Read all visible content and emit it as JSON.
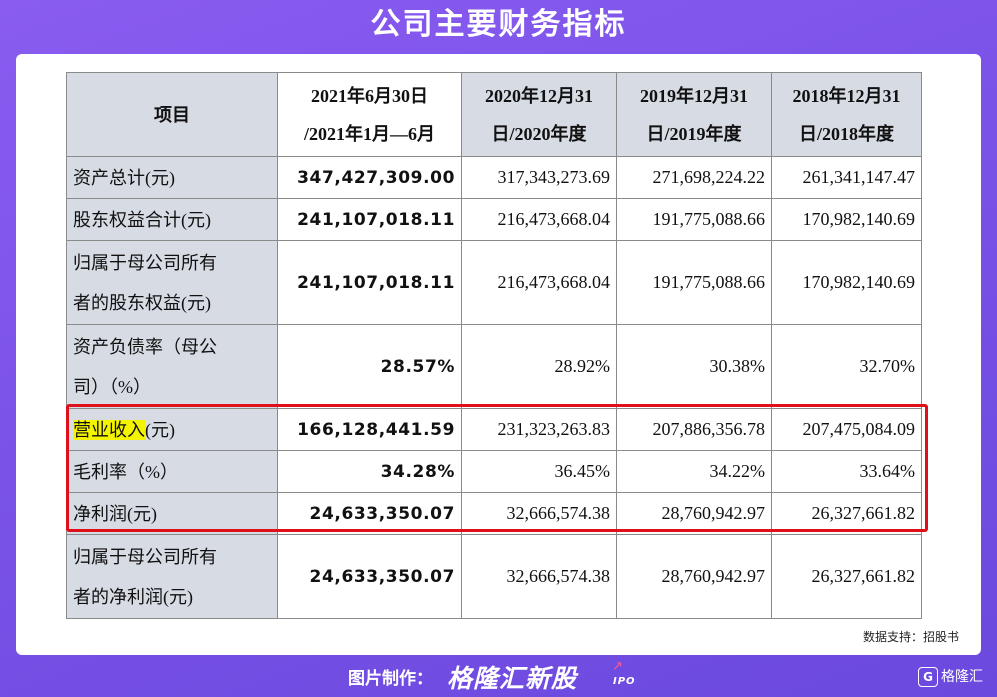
{
  "title": "公司主要财务指标",
  "watermark": {
    "brand": "格隆汇新股",
    "ipo": "IPO"
  },
  "table": {
    "header": {
      "item": "项目",
      "cols": [
        [
          "2021年6月30日",
          "/2021年1月—6月"
        ],
        [
          "2020年12月31",
          "日/2020年度"
        ],
        [
          "2019年12月31",
          "日/2019年度"
        ],
        [
          "2018年12月31",
          "日/2018年度"
        ]
      ]
    },
    "rows": [
      {
        "label_lines": [
          "资产总计(元)"
        ],
        "values": [
          "347,427,309.00",
          "317,343,273.69",
          "271,698,224.22",
          "261,341,147.47"
        ]
      },
      {
        "label_lines": [
          "股东权益合计(元)"
        ],
        "values": [
          "241,107,018.11",
          "216,473,668.04",
          "191,775,088.66",
          "170,982,140.69"
        ]
      },
      {
        "label_lines": [
          "归属于母公司所有",
          "者的股东权益(元)"
        ],
        "values": [
          "241,107,018.11",
          "216,473,668.04",
          "191,775,088.66",
          "170,982,140.69"
        ]
      },
      {
        "label_lines": [
          "资产负债率（母公",
          "司）（%）"
        ],
        "values": [
          "28.57%",
          "28.92%",
          "30.38%",
          "32.70%"
        ]
      },
      {
        "label_hl": "营业收入",
        "label_rest": "(元)",
        "values": [
          "166,128,441.59",
          "231,323,263.83",
          "207,886,356.78",
          "207,475,084.09"
        ]
      },
      {
        "label_lines": [
          "毛利率（%）"
        ],
        "values": [
          "34.28%",
          "36.45%",
          "34.22%",
          "33.64%"
        ]
      },
      {
        "label_lines": [
          "净利润(元)"
        ],
        "values": [
          "24,633,350.07",
          "32,666,574.38",
          "28,760,942.97",
          "26,327,661.82"
        ]
      },
      {
        "label_lines": [
          "归属于母公司所有",
          "者的净利润(元)"
        ],
        "values": [
          "24,633,350.07",
          "32,666,574.38",
          "28,760,942.97",
          "26,327,661.82"
        ]
      }
    ]
  },
  "source": "数据支持：招股书",
  "footer": {
    "credit": "图片制作：",
    "brand": "格隆汇新股",
    "brand_ipo": "IPO",
    "corner_logo": "G",
    "corner_text": "格隆汇"
  },
  "colors": {
    "background": "#7a52e8",
    "label_fill": "#d6dbe4",
    "highlight": "#f4f400",
    "red_box": "#e0101a"
  }
}
